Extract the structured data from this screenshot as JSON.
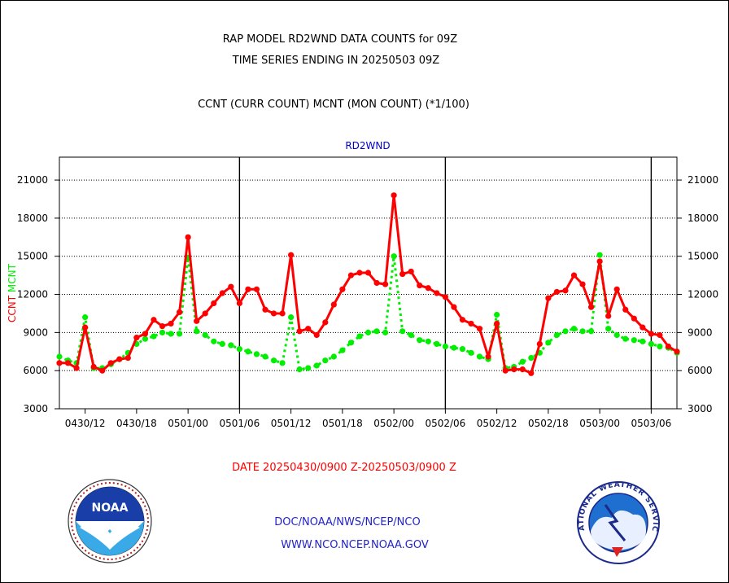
{
  "header": {
    "title_line1": "RAP MODEL RD2WND DATA COUNTS for 09Z",
    "title_line2": "TIME SERIES ENDING IN 20250503 09Z",
    "subtitle": "CCNT (CURR COUNT) MCNT (MON COUNT) (*1/100)"
  },
  "footer": {
    "date_range": "DATE 20250430/0900 Z-20250503/0900 Z",
    "org_line": "DOC/NOAA/NWS/NCEP/NCO",
    "url_line": "WWW.NCO.NCEP.NOAA.GOV"
  },
  "logos": {
    "noaa_text": "NOAA",
    "nws_text": "NATIONAL WEATHER SERVICE"
  },
  "colors": {
    "ccnt": "#ff0000",
    "mcnt": "#00ee00",
    "panel_title": "#0000cc",
    "date": "#ff0000",
    "footer_text": "#2222cc"
  },
  "chart_data": {
    "type": "line",
    "title": "RD2WND",
    "ylabel_parts": [
      {
        "text": "CCNT",
        "color": "#ff0000"
      },
      {
        "text": "MCNT",
        "color": "#00ee00"
      }
    ],
    "yticks": [
      3000,
      6000,
      9000,
      12000,
      15000,
      18000,
      21000
    ],
    "ytick_labels": [
      "3000",
      "6000",
      "9000",
      "12000",
      "15000",
      "18000",
      "21000"
    ],
    "ylim": [
      3000,
      22800
    ],
    "xlim": [
      0,
      72
    ],
    "xticks": [
      3,
      9,
      15,
      21,
      27,
      33,
      39,
      45,
      51,
      57,
      63,
      69
    ],
    "xtick_labels": [
      "0430/12",
      "0430/18",
      "0501/00",
      "0501/06",
      "0501/12",
      "0501/18",
      "0502/00",
      "0502/06",
      "0502/12",
      "0502/18",
      "0503/00",
      "0503/06"
    ],
    "day_boundaries": [
      21,
      45,
      69
    ],
    "grid": true,
    "series": [
      {
        "name": "CCNT",
        "style": "solid",
        "x": [
          0,
          1,
          2,
          3,
          4,
          5,
          6,
          7,
          8,
          9,
          10,
          11,
          12,
          13,
          14,
          15,
          16,
          17,
          18,
          19,
          20,
          21,
          22,
          23,
          24,
          25,
          26,
          27,
          28,
          29,
          30,
          31,
          32,
          33,
          34,
          35,
          36,
          37,
          38,
          39,
          40,
          41,
          42,
          43,
          44,
          45,
          46,
          47,
          48,
          49,
          50,
          51,
          52,
          53,
          54,
          55,
          56,
          57,
          58,
          59,
          60,
          61,
          62,
          63,
          64,
          65,
          66,
          67,
          68,
          69,
          70,
          71,
          72
        ],
        "values": [
          6600,
          6600,
          6200,
          9400,
          6300,
          6000,
          6600,
          6900,
          7000,
          8600,
          8900,
          10000,
          9500,
          9700,
          10600,
          16500,
          9900,
          10500,
          11300,
          12100,
          12600,
          11300,
          12400,
          12400,
          10800,
          10500,
          10500,
          15100,
          9100,
          9300,
          8800,
          9800,
          11200,
          12400,
          13500,
          13700,
          13700,
          12900,
          12800,
          19800,
          13600,
          13800,
          12700,
          12500,
          12100,
          11800,
          11000,
          10000,
          9700,
          9300,
          7100,
          9700,
          6000,
          6100,
          6100,
          5800,
          8100,
          11700,
          12200,
          12300,
          13500,
          12800,
          11000,
          14600,
          10300,
          12400,
          10800,
          10100,
          9400,
          8900,
          8800,
          7900,
          7500
        ]
      },
      {
        "name": "MCNT",
        "style": "dotted",
        "x": [
          0,
          1,
          2,
          3,
          4,
          5,
          6,
          7,
          8,
          9,
          10,
          11,
          12,
          13,
          14,
          15,
          16,
          17,
          18,
          19,
          20,
          21,
          22,
          23,
          24,
          25,
          26,
          27,
          28,
          29,
          30,
          31,
          32,
          33,
          34,
          35,
          36,
          37,
          38,
          39,
          40,
          41,
          42,
          43,
          44,
          45,
          46,
          47,
          48,
          49,
          50,
          51,
          52,
          53,
          54,
          55,
          56,
          57,
          58,
          59,
          60,
          61,
          62,
          63,
          64,
          65,
          66,
          67,
          68,
          69,
          70,
          71,
          72
        ],
        "values": [
          7100,
          6800,
          6600,
          10200,
          6200,
          6200,
          6500,
          6900,
          7400,
          8100,
          8500,
          8700,
          9000,
          8900,
          8900,
          14900,
          9100,
          8800,
          8300,
          8100,
          8000,
          7700,
          7500,
          7300,
          7100,
          6800,
          6600,
          10200,
          6100,
          6200,
          6400,
          6800,
          7100,
          7600,
          8200,
          8700,
          9000,
          9100,
          9000,
          15000,
          9100,
          8800,
          8400,
          8300,
          8100,
          7900,
          7800,
          7700,
          7400,
          7100,
          6900,
          10400,
          6200,
          6300,
          6700,
          7000,
          7400,
          8200,
          8800,
          9100,
          9300,
          9100,
          9100,
          15100,
          9300,
          8800,
          8500,
          8400,
          8300,
          8100,
          7900,
          7800,
          7400
        ]
      }
    ]
  }
}
